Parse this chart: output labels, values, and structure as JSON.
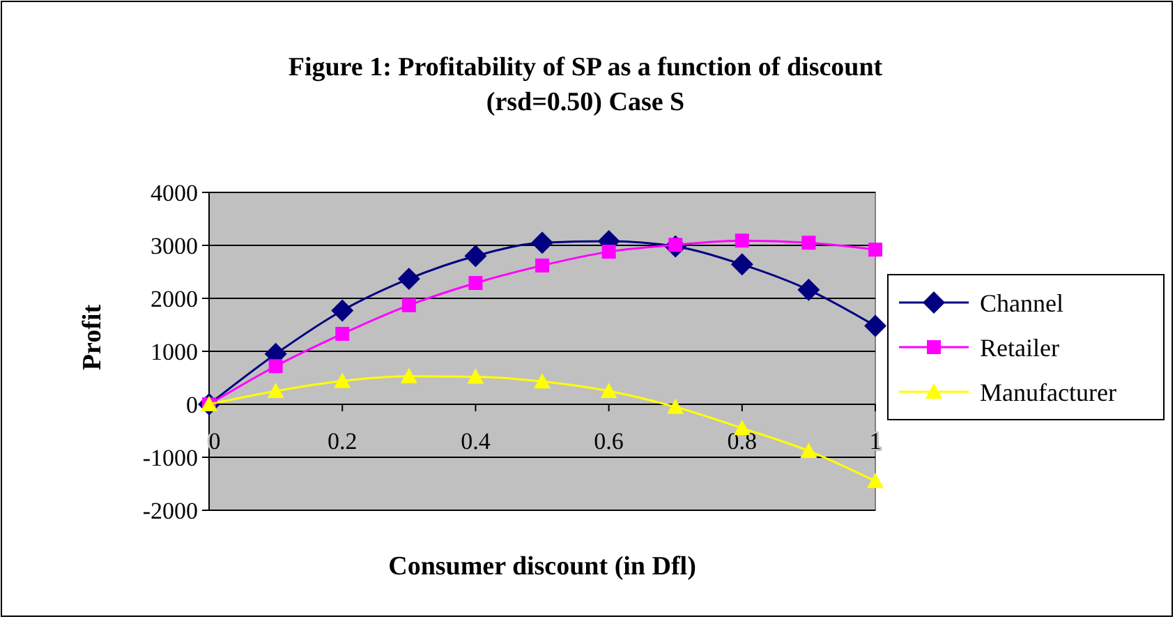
{
  "chart_data": {
    "type": "line",
    "title": "Figure 1: Profitability of SP as a function of discount\n(rsd=0.50) Case S",
    "xlabel": "Consumer discount (in Dfl)",
    "ylabel": "Profit",
    "x": [
      0,
      0.1,
      0.2,
      0.3,
      0.4,
      0.5,
      0.6,
      0.7,
      0.8,
      0.9,
      1
    ],
    "xlim": [
      0,
      1
    ],
    "xticks": [
      0,
      0.2,
      0.4,
      0.6,
      0.8,
      1
    ],
    "ylim": [
      -2000,
      4000
    ],
    "yticks": [
      -2000,
      -1000,
      0,
      1000,
      2000,
      3000,
      4000
    ],
    "grid": "y",
    "legend": "right",
    "series": [
      {
        "name": "Channel",
        "color": "#000080",
        "marker": "diamond",
        "values": [
          0,
          950,
          1770,
          2370,
          2800,
          3050,
          3080,
          2980,
          2640,
          2160,
          1480
        ]
      },
      {
        "name": "Retailer",
        "color": "#ff00ff",
        "marker": "square",
        "values": [
          0,
          720,
          1330,
          1870,
          2290,
          2620,
          2880,
          3010,
          3090,
          3050,
          2920
        ]
      },
      {
        "name": "Manufacturer",
        "color": "#ffff00",
        "marker": "triangle",
        "values": [
          0,
          250,
          440,
          530,
          520,
          430,
          250,
          -50,
          -450,
          -880,
          -1450
        ]
      }
    ]
  }
}
